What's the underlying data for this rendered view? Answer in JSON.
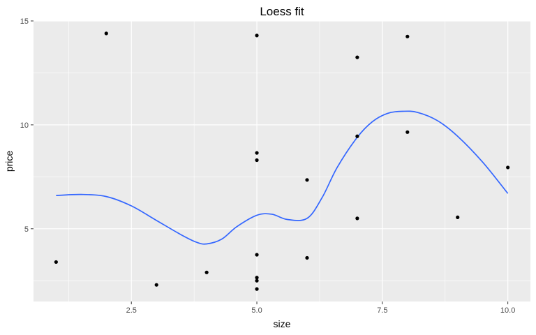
{
  "chart_data": {
    "type": "scatter",
    "title": "Loess fit",
    "xlabel": "size",
    "ylabel": "price",
    "xlim": [
      0.55,
      10.45
    ],
    "ylim": [
      1.5,
      15.0
    ],
    "x_ticks": [
      2.5,
      5.0,
      7.5,
      10.0
    ],
    "x_tick_labels": [
      "2.5",
      "5.0",
      "7.5",
      "10.0"
    ],
    "y_ticks": [
      5,
      10,
      15
    ],
    "y_tick_labels": [
      "5",
      "10",
      "15"
    ],
    "grid": true,
    "colors": {
      "panel": "#ebebeb",
      "grid": "#ffffff",
      "point": "#000000",
      "fit_line": "#3366ff"
    },
    "series": [
      {
        "type": "scatter",
        "points": [
          [
            1,
            3.4
          ],
          [
            2,
            14.4
          ],
          [
            3,
            2.3
          ],
          [
            4,
            2.9
          ],
          [
            5,
            14.3
          ],
          [
            5,
            8.65
          ],
          [
            5,
            8.3
          ],
          [
            5,
            3.75
          ],
          [
            5,
            2.65
          ],
          [
            5,
            2.5
          ],
          [
            5,
            2.1
          ],
          [
            6,
            7.35
          ],
          [
            6,
            3.6
          ],
          [
            7,
            13.25
          ],
          [
            7,
            9.45
          ],
          [
            7,
            5.5
          ],
          [
            8,
            14.25
          ],
          [
            8,
            9.65
          ],
          [
            9,
            5.55
          ],
          [
            10,
            7.95
          ]
        ]
      },
      {
        "type": "line",
        "points": [
          [
            1.0,
            6.6
          ],
          [
            1.5,
            6.65
          ],
          [
            2.0,
            6.55
          ],
          [
            2.5,
            6.1
          ],
          [
            3.0,
            5.4
          ],
          [
            3.5,
            4.7
          ],
          [
            3.8,
            4.35
          ],
          [
            4.0,
            4.27
          ],
          [
            4.3,
            4.5
          ],
          [
            4.6,
            5.1
          ],
          [
            5.0,
            5.65
          ],
          [
            5.3,
            5.7
          ],
          [
            5.6,
            5.45
          ],
          [
            6.0,
            5.5
          ],
          [
            6.3,
            6.5
          ],
          [
            6.6,
            7.95
          ],
          [
            7.0,
            9.4
          ],
          [
            7.3,
            10.15
          ],
          [
            7.6,
            10.55
          ],
          [
            7.9,
            10.65
          ],
          [
            8.2,
            10.6
          ],
          [
            8.6,
            10.2
          ],
          [
            9.0,
            9.45
          ],
          [
            9.5,
            8.2
          ],
          [
            10.0,
            6.7
          ]
        ]
      }
    ]
  }
}
